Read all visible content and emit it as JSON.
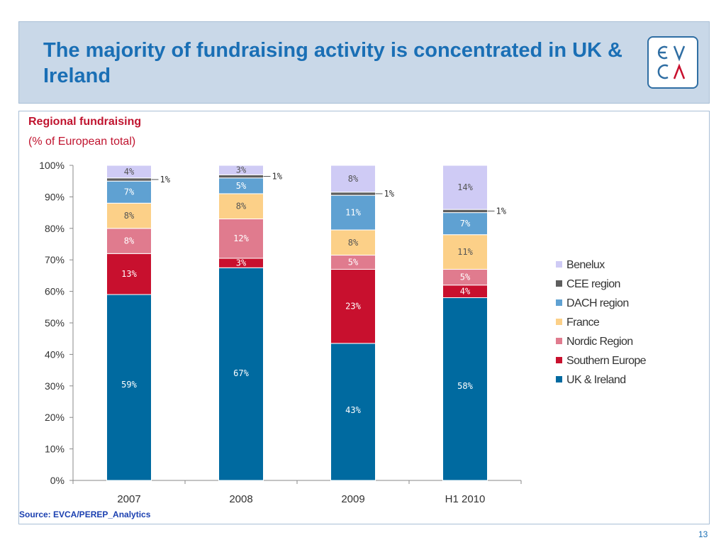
{
  "header": {
    "title": "The majority of fundraising activity is concentrated in UK & Ireland",
    "logo_top": "EV",
    "logo_bottom": "CA"
  },
  "chart_subtitle": "Regional fundraising",
  "chart_subtitle2": "(% of European total)",
  "source": "Source: EVCA/PEREP_Analytics",
  "page_number": "13",
  "chart_data": {
    "type": "bar",
    "stacked": true,
    "title": "Regional fundraising",
    "subtitle": "(% of European total)",
    "categories": [
      "2007",
      "2008",
      "2009",
      "H1 2010"
    ],
    "ylim": [
      0,
      100
    ],
    "yticks": [
      0,
      10,
      20,
      30,
      40,
      50,
      60,
      70,
      80,
      90,
      100
    ],
    "ytick_labels": [
      "0%",
      "10%",
      "20%",
      "30%",
      "40%",
      "50%",
      "60%",
      "70%",
      "80%",
      "90%",
      "100%"
    ],
    "legend_position": "right",
    "series": [
      {
        "name": "UK & Ireland",
        "color": "#006aa0",
        "label_color": "#ffffff",
        "values": [
          59,
          67.5,
          43.5,
          58
        ],
        "labels": [
          "59%",
          "67%",
          "43%",
          "58%"
        ]
      },
      {
        "name": "Southern Europe",
        "color": "#c8102e",
        "label_color": "#ffffff",
        "values": [
          13,
          3,
          23.5,
          4
        ],
        "labels": [
          "13%",
          "3%",
          "23%",
          "4%"
        ]
      },
      {
        "name": "Nordic Region",
        "color": "#e07b8e",
        "label_color": "#ffffff",
        "values": [
          8,
          12.5,
          4.5,
          5
        ],
        "labels": [
          "8%",
          "12%",
          "5%",
          "5%"
        ]
      },
      {
        "name": "France",
        "color": "#fcd088",
        "label_color": "#555555",
        "values": [
          8,
          8,
          8,
          11
        ],
        "labels": [
          "8%",
          "8%",
          "8%",
          "11%"
        ]
      },
      {
        "name": "DACH region",
        "color": "#5fa1d2",
        "label_color": "#ffffff",
        "values": [
          7,
          5,
          11,
          7
        ],
        "labels": [
          "7%",
          "5%",
          "11%",
          "7%"
        ]
      },
      {
        "name": "CEE region",
        "color": "#5e5e5e",
        "label_color": "#333333",
        "values": [
          1,
          1,
          1,
          1
        ],
        "labels": [
          "1%",
          "1%",
          "1%",
          "1%"
        ]
      },
      {
        "name": "Benelux",
        "color": "#cfcbf5",
        "label_color": "#555555",
        "values": [
          4,
          3,
          8.5,
          14
        ],
        "labels": [
          "4%",
          "3%",
          "8%",
          "14%"
        ]
      }
    ]
  }
}
